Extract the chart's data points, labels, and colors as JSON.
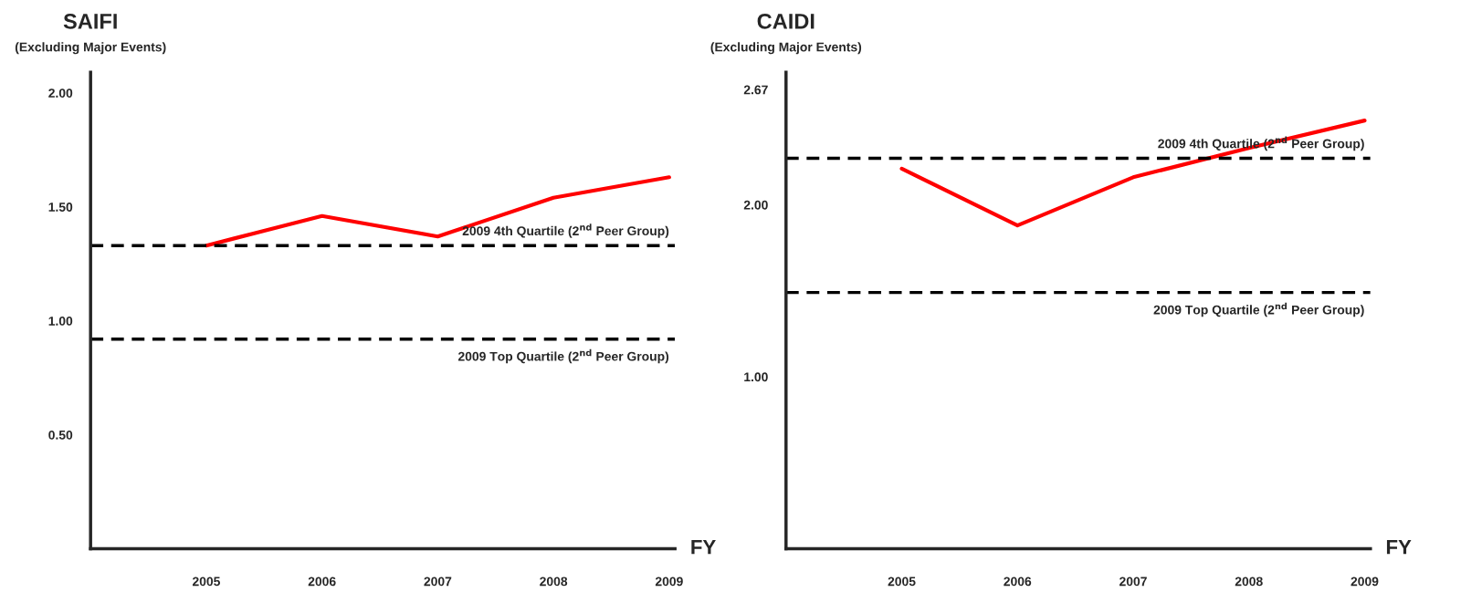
{
  "chart_data": [
    {
      "type": "line",
      "title": "SAIFI",
      "subtitle": "(Excluding Major Events)",
      "xlabel": "FY",
      "categories": [
        "2005",
        "2006",
        "2007",
        "2008",
        "2009"
      ],
      "series": [
        {
          "color": "#ff0000",
          "values": [
            1.33,
            1.46,
            1.37,
            1.54,
            1.63
          ]
        }
      ],
      "ylim": [
        0,
        2.09
      ],
      "yticks": [
        {
          "value": 0.5,
          "label": "0.50"
        },
        {
          "value": 1.0,
          "label": "1.00"
        },
        {
          "value": 1.5,
          "label": "1.50"
        },
        {
          "value": 2.0,
          "label": "2.00"
        }
      ],
      "ref_lines": [
        {
          "axis": "y",
          "value": 1.33,
          "label": "2009 4th Quartile (2$^{nd}$ Peer Group)",
          "color": "#000000",
          "line_style": "dashed"
        },
        {
          "axis": "y",
          "value": 0.92,
          "label": "2009 Top Quartile (2$^{nd}$ Peer Group)",
          "color": "#000000",
          "line_style": "dashed"
        }
      ],
      "grid": false,
      "legend": false,
      "line_style": "solid",
      "marker": "none"
    },
    {
      "type": "line",
      "title": "CAIDI",
      "subtitle": "(Excluding Major Events)",
      "xlabel": "FY",
      "categories": [
        "2005",
        "2006",
        "2007",
        "2008",
        "2009"
      ],
      "series": [
        {
          "color": "#ff0000",
          "values": [
            2.21,
            1.88,
            2.16,
            2.33,
            2.49
          ]
        }
      ],
      "ylim": [
        0,
        2.77
      ],
      "yticks": [
        {
          "value": 1.0,
          "label": "1.00"
        },
        {
          "value": 2.0,
          "label": "2.00"
        },
        {
          "value": 2.67,
          "label": "2.67"
        }
      ],
      "ref_lines": [
        {
          "axis": "y",
          "value": 2.27,
          "label": "2009 4th Quartile (2$^{nd}$ Peer Group)",
          "color": "#000000",
          "line_style": "dashed"
        },
        {
          "axis": "y",
          "value": 1.49,
          "label": "2009 Top Quartile (2$^{nd}$ Peer Group)",
          "color": "#000000",
          "line_style": "dashed"
        }
      ],
      "grid": false,
      "legend": false,
      "line_style": "solid",
      "marker": "none"
    }
  ]
}
